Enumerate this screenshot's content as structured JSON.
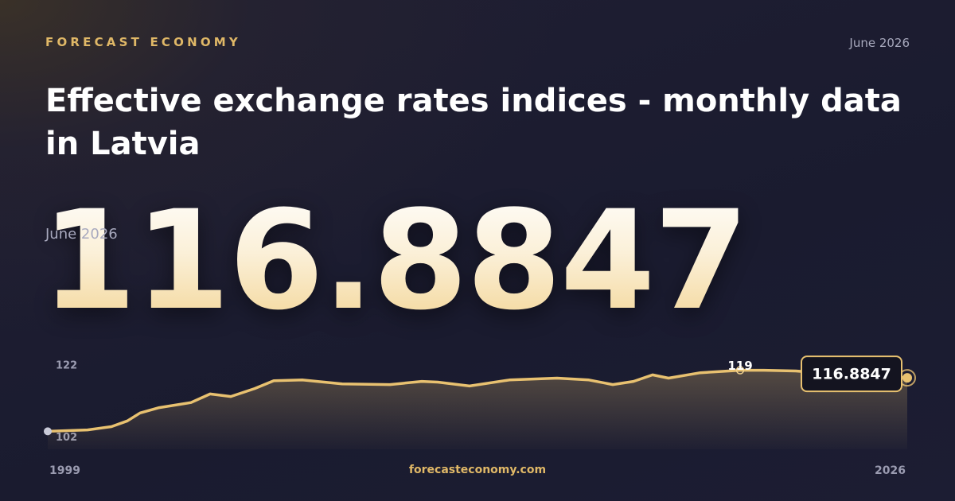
{
  "brand": "FORECAST ECONOMY",
  "date_label": "June 2026",
  "title": "Effective exchange rates indices - monthly data in Latvia",
  "footer": "forecasteconomy.com",
  "chart_data": {
    "type": "area",
    "x": [
      1999,
      2000.25,
      2001,
      2001.5,
      2001.9,
      2002.5,
      2003.5,
      2004.1,
      2004.75,
      2005.5,
      2006.1,
      2007,
      2008.25,
      2009.75,
      2010.75,
      2011.25,
      2012.25,
      2013.5,
      2015,
      2016,
      2016.75,
      2017.4,
      2018,
      2018.5,
      2019.5,
      2020.75,
      2021.5,
      2022.5,
      2023.5,
      2026
    ],
    "series": [
      {
        "color": "#e8c170",
        "values": [
          102.0,
          102.4,
          103.3,
          104.9,
          107.1,
          108.6,
          110.0,
          112.4,
          111.7,
          113.9,
          116.1,
          116.3,
          115.2,
          115.0,
          115.9,
          115.7,
          114.6,
          116.3,
          116.8,
          116.3,
          115.0,
          115.9,
          117.7,
          116.8,
          118.3,
          119.0,
          119.0,
          118.8,
          118.1,
          116.8847
        ]
      }
    ],
    "annotations": [
      {
        "x": 2020.75,
        "value": 119
      }
    ],
    "xlim": [
      1999,
      2026
    ],
    "xticks": [
      1999,
      2026
    ],
    "ylim": [
      97,
      122
    ],
    "yticks": [
      102,
      122
    ],
    "grid": false
  }
}
